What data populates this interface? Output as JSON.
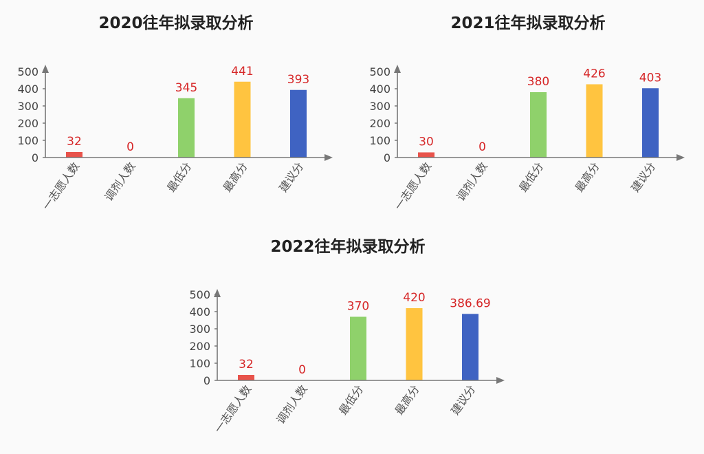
{
  "chart_data": [
    {
      "type": "bar",
      "title": "2020往年拟录取分析",
      "categories": [
        "一志愿人数",
        "调剂人数",
        "最低分",
        "最高分",
        "建议分"
      ],
      "values": [
        32,
        0,
        345,
        441,
        393
      ],
      "value_labels": [
        "32",
        "0",
        "345",
        "441",
        "393"
      ],
      "colors": [
        "#e8534b",
        "#e8534b",
        "#8fd16b",
        "#ffc440",
        "#3f63c2"
      ],
      "yticks": [
        "0",
        "100",
        "200",
        "300",
        "400",
        "500"
      ],
      "ylim": [
        0,
        500
      ],
      "grid": false
    },
    {
      "type": "bar",
      "title": "2021往年拟录取分析",
      "categories": [
        "一志愿人数",
        "调剂人数",
        "最低分",
        "最高分",
        "建议分"
      ],
      "values": [
        30,
        0,
        380,
        426,
        403
      ],
      "value_labels": [
        "30",
        "0",
        "380",
        "426",
        "403"
      ],
      "colors": [
        "#e8534b",
        "#e8534b",
        "#8fd16b",
        "#ffc440",
        "#3f63c2"
      ],
      "yticks": [
        "0",
        "100",
        "200",
        "300",
        "400",
        "500"
      ],
      "ylim": [
        0,
        500
      ],
      "grid": false
    },
    {
      "type": "bar",
      "title": "2022往年拟录取分析",
      "categories": [
        "一志愿人数",
        "调剂人数",
        "最低分",
        "最高分",
        "建议分"
      ],
      "values": [
        32,
        0,
        370,
        420,
        386.69
      ],
      "value_labels": [
        "32",
        "0",
        "370",
        "420",
        "386.69"
      ],
      "colors": [
        "#e8534b",
        "#e8534b",
        "#8fd16b",
        "#ffc440",
        "#3f63c2"
      ],
      "yticks": [
        "0",
        "100",
        "200",
        "300",
        "400",
        "500"
      ],
      "ylim": [
        0,
        500
      ],
      "grid": false
    }
  ],
  "style": {
    "axis_color": "#777777",
    "tick_text_color": "#444444",
    "value_label_color": "#d62728",
    "category_text_color": "#555555"
  }
}
